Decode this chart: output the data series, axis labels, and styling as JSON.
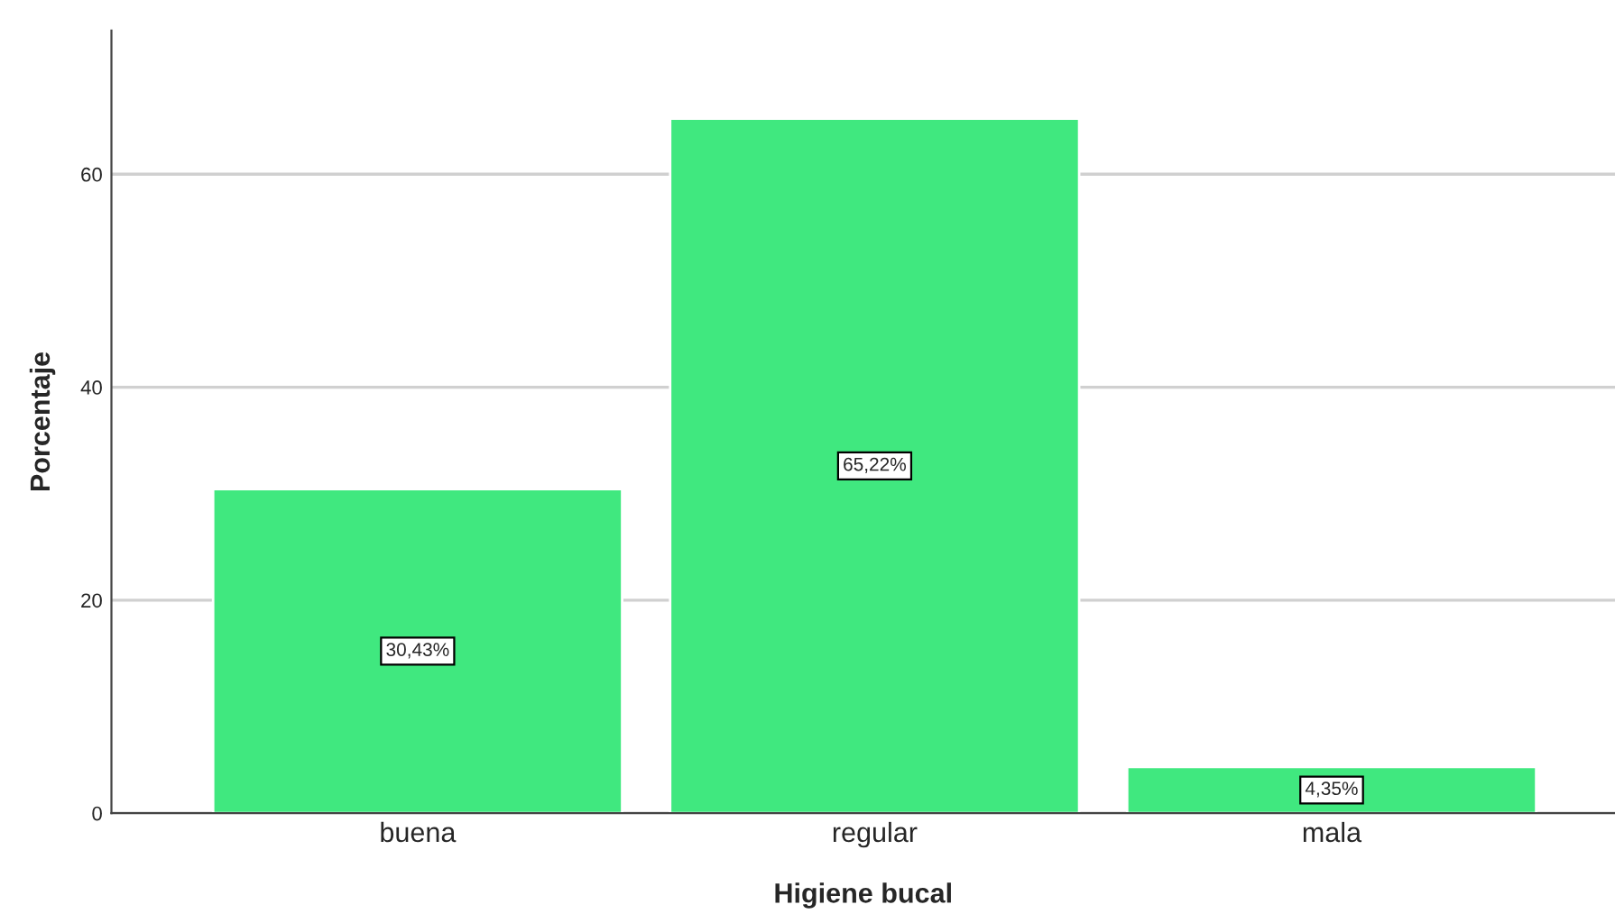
{
  "chart_data": {
    "type": "bar",
    "xlabel": "Higiene bucal",
    "ylabel": "Porcentaje",
    "categories": [
      "buena",
      "regular",
      "mala"
    ],
    "values": [
      30.43,
      65.22,
      4.35
    ],
    "value_labels": [
      "30,43%",
      "65,22%",
      "4,35%"
    ],
    "color": "#40e87f",
    "ylim": [
      0,
      73.5
    ],
    "yticks": [
      0,
      20,
      40,
      60
    ],
    "grid": "y",
    "legend": false
  }
}
